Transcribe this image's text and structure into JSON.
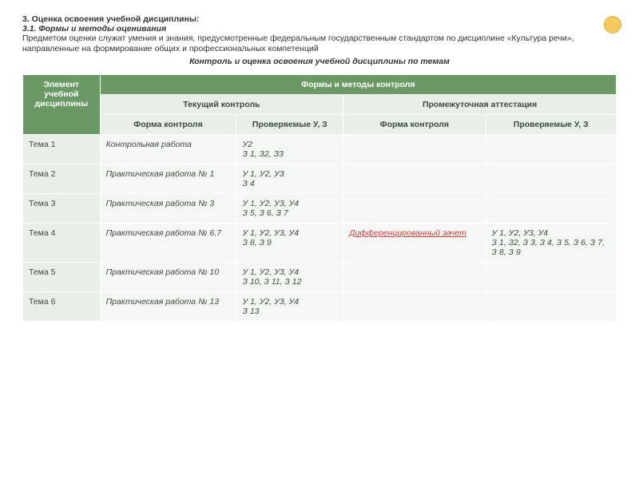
{
  "heading": {
    "section": "3. Оценка освоения учебной дисциплины:",
    "subsection": "3.1. Формы и методы оценивания",
    "intro": "Предметом оценки служат умения и знания, предусмотренные федеральным государственным стандартом по дисциплине «Культура речи», направленные на формирование общих и профессиональных компетенций",
    "centered": "Контроль и оценка освоения  учебной дисциплины по темам"
  },
  "table": {
    "headers": {
      "element": "Элемент учебной дисциплины",
      "forms_methods": "Формы и методы контроля",
      "current": "Текущий контроль",
      "intermediate": "Промежуточная аттестация",
      "form": "Форма контроля",
      "checked": "Проверяемые У, З",
      "form_interm": "Форма контроля",
      "checked_interm": "Проверяемые У, З"
    },
    "rows": [
      {
        "theme": "Тема 1",
        "form": "Контрольная работа",
        "prov": "У2\nЗ 1, З2, З3",
        "iform": "",
        "iprov": ""
      },
      {
        "theme": "Тема 2",
        "form": "Практическая работа № 1",
        "prov": "У 1, У2, У3\nЗ 4",
        "iform": "",
        "iprov": ""
      },
      {
        "theme": "Тема 3",
        "form": "Практическая работа № 3",
        "prov": "У 1, У2, У3, У4\nЗ 5, З 6, З 7",
        "iform": "",
        "iprov": ""
      },
      {
        "theme": "Тема 4",
        "form": "Практическая работа № 6,7",
        "prov": "У 1, У2, У3, У4\nЗ 8, З 9",
        "iform": "Дифференцированный зачет",
        "iprov": "У 1, У2, У3, У4\nЗ 1, З2, З 3, З 4, З 5, З 6, З 7, З 8, З 9"
      },
      {
        "theme": "Тема 5",
        "form": "Практическая работа № 10",
        "prov": "У 1, У2, У3, У4\nЗ 10, З 11, З 12",
        "iform": "",
        "iprov": ""
      },
      {
        "theme": "Тема 6",
        "form": "Практическая работа № 13",
        "prov": "У 1, У2, У3, У4\nЗ 13",
        "iform": "",
        "iprov": ""
      }
    ]
  }
}
